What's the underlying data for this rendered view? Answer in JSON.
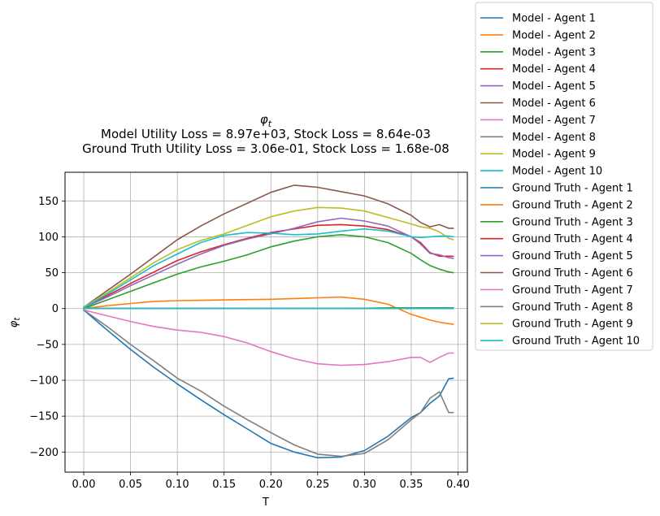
{
  "chart_data": {
    "type": "line",
    "title": "φ_t",
    "subtitle_1": "Model Utility Loss = 8.97e+03, Stock Loss = 8.64e-03",
    "subtitle_2": "Ground Truth Utility Loss = 3.06e-01, Stock Loss = 1.68e-08",
    "xlabel": "T",
    "ylabel": "φ_t",
    "xlim": [
      -0.02,
      0.41
    ],
    "ylim": [
      -228,
      190
    ],
    "grid": true,
    "legend_position": "outside-right",
    "xticks": [
      {
        "value": 0.0,
        "label": "0.00"
      },
      {
        "value": 0.05,
        "label": "0.05"
      },
      {
        "value": 0.1,
        "label": "0.10"
      },
      {
        "value": 0.15,
        "label": "0.15"
      },
      {
        "value": 0.2,
        "label": "0.20"
      },
      {
        "value": 0.25,
        "label": "0.25"
      },
      {
        "value": 0.3,
        "label": "0.30"
      },
      {
        "value": 0.35,
        "label": "0.35"
      },
      {
        "value": 0.4,
        "label": "0.40"
      }
    ],
    "yticks": [
      {
        "value": 150,
        "label": "150"
      },
      {
        "value": 100,
        "label": "100"
      },
      {
        "value": 50,
        "label": "50"
      },
      {
        "value": 0,
        "label": "0"
      },
      {
        "value": -50,
        "label": "−50"
      },
      {
        "value": -100,
        "label": "−100"
      },
      {
        "value": -150,
        "label": "−150"
      },
      {
        "value": -200,
        "label": "−200"
      }
    ],
    "x": [
      0.0,
      0.025,
      0.05,
      0.075,
      0.1,
      0.125,
      0.15,
      0.175,
      0.2,
      0.225,
      0.25,
      0.275,
      0.3,
      0.325,
      0.35,
      0.36,
      0.37,
      0.38,
      0.39,
      0.395
    ],
    "series": [
      {
        "name": "Model - Agent 1",
        "color": "#1f77b4",
        "values": [
          -2,
          -30,
          -57,
          -82,
          -105,
          -127,
          -148,
          -168,
          -188,
          -200,
          -208,
          -207,
          -198,
          -178,
          -152,
          -145,
          -132,
          -122,
          -98,
          -97
        ]
      },
      {
        "name": "Model - Agent 2",
        "color": "#ff7f0e",
        "values": [
          0,
          4,
          7,
          10,
          11,
          11.5,
          12,
          12.5,
          13,
          14,
          15,
          16,
          13,
          6,
          -8,
          -12,
          -16,
          -19,
          -21,
          -22
        ]
      },
      {
        "name": "Model - Agent 3",
        "color": "#2ca02c",
        "values": [
          0,
          12,
          24,
          36,
          48,
          58,
          66,
          75,
          86,
          94,
          100,
          103,
          100,
          92,
          77,
          68,
          60,
          55,
          51,
          50
        ]
      },
      {
        "name": "Model - Agent 4",
        "color": "#d62728",
        "values": [
          1,
          18,
          35,
          51,
          67,
          79,
          89,
          98,
          106,
          111,
          116,
          117,
          115,
          110,
          100,
          92,
          78,
          73,
          73,
          73
        ]
      },
      {
        "name": "Model - Agent 5",
        "color": "#9467bd",
        "values": [
          1,
          16,
          32,
          47,
          62,
          76,
          88,
          97,
          104,
          112,
          121,
          126,
          122,
          115,
          100,
          90,
          77,
          75,
          71,
          70
        ]
      },
      {
        "name": "Model - Agent 6",
        "color": "#8c564b",
        "values": [
          2,
          25,
          48,
          72,
          96,
          115,
          132,
          147,
          162,
          172,
          169,
          163,
          157,
          146,
          130,
          120,
          114,
          117,
          112,
          112
        ]
      },
      {
        "name": "Model - Agent 7",
        "color": "#e377c2",
        "values": [
          -2,
          -10,
          -18,
          -25,
          -30,
          -33,
          -39,
          -48,
          -60,
          -70,
          -77,
          -79,
          -78,
          -74,
          -68,
          -68,
          -75,
          -68,
          -62,
          -62
        ]
      },
      {
        "name": "Model - Agent 8",
        "color": "#7f7f7f",
        "values": [
          -2,
          -25,
          -50,
          -73,
          -97,
          -115,
          -136,
          -155,
          -173,
          -190,
          -203,
          -206,
          -202,
          -183,
          -155,
          -145,
          -125,
          -116,
          -145,
          -145
        ]
      },
      {
        "name": "Model - Agent 9",
        "color": "#bcbd22",
        "values": [
          2,
          22,
          43,
          64,
          82,
          95,
          104,
          116,
          128,
          136,
          141,
          140,
          136,
          127,
          118,
          114,
          112,
          107,
          98,
          96
        ]
      },
      {
        "name": "Model - Agent 10",
        "color": "#17becf",
        "values": [
          1,
          20,
          40,
          60,
          76,
          92,
          102,
          106,
          105,
          103,
          104,
          108,
          111,
          108,
          100,
          99,
          100,
          101,
          101,
          100
        ]
      },
      {
        "name": "Ground Truth - Agent 1",
        "color": "#1f77b4",
        "values": [
          0,
          0,
          0,
          0,
          0,
          0,
          0,
          0,
          0,
          0,
          0,
          0,
          0,
          0,
          0,
          0,
          0,
          0,
          0,
          0
        ]
      },
      {
        "name": "Ground Truth - Agent 2",
        "color": "#ff7f0e",
        "values": [
          0,
          0,
          0,
          0,
          0,
          0,
          0,
          0,
          0,
          0,
          0,
          0,
          0,
          0,
          0,
          0,
          0,
          0,
          0,
          0
        ]
      },
      {
        "name": "Ground Truth - Agent 3",
        "color": "#2ca02c",
        "values": [
          0,
          0,
          0,
          0,
          0,
          0,
          0,
          0,
          0,
          0,
          0,
          0,
          0.5,
          1,
          1,
          1,
          1,
          1,
          1,
          1
        ]
      },
      {
        "name": "Ground Truth - Agent 4",
        "color": "#d62728",
        "values": [
          0,
          0,
          0,
          0,
          0,
          0,
          0,
          0,
          0,
          0,
          0,
          0,
          0,
          0,
          0,
          0,
          0,
          0,
          0,
          0
        ]
      },
      {
        "name": "Ground Truth - Agent 5",
        "color": "#9467bd",
        "values": [
          0,
          0,
          0,
          0,
          0,
          0,
          0,
          0,
          0,
          0,
          0,
          0,
          0,
          0,
          0,
          0,
          0,
          0,
          0,
          0
        ]
      },
      {
        "name": "Ground Truth - Agent 6",
        "color": "#8c564b",
        "values": [
          0,
          0,
          0,
          0,
          0,
          0,
          0,
          0,
          0,
          0,
          0,
          0,
          0,
          0,
          0,
          0,
          0,
          0,
          0,
          0
        ]
      },
      {
        "name": "Ground Truth - Agent 7",
        "color": "#e377c2",
        "values": [
          0,
          0,
          0,
          0,
          0,
          0,
          0,
          0,
          0,
          0,
          0,
          0,
          0,
          0,
          0,
          0,
          0,
          0,
          0,
          0
        ]
      },
      {
        "name": "Ground Truth - Agent 8",
        "color": "#7f7f7f",
        "values": [
          0,
          0,
          0,
          0,
          0,
          0,
          0,
          0,
          0,
          0,
          0,
          0,
          0,
          0,
          0,
          0,
          0,
          0,
          0,
          0
        ]
      },
      {
        "name": "Ground Truth - Agent 9",
        "color": "#bcbd22",
        "values": [
          0,
          0,
          0,
          0,
          0,
          0,
          0,
          0,
          0,
          0,
          0,
          0,
          0,
          0,
          0,
          0,
          0,
          0,
          0,
          0
        ]
      },
      {
        "name": "Ground Truth - Agent 10",
        "color": "#17becf",
        "values": [
          0,
          0,
          0,
          0,
          0,
          0,
          0,
          0,
          0,
          0,
          0,
          0,
          0,
          0,
          0,
          0,
          0,
          0,
          0,
          0
        ]
      }
    ]
  }
}
